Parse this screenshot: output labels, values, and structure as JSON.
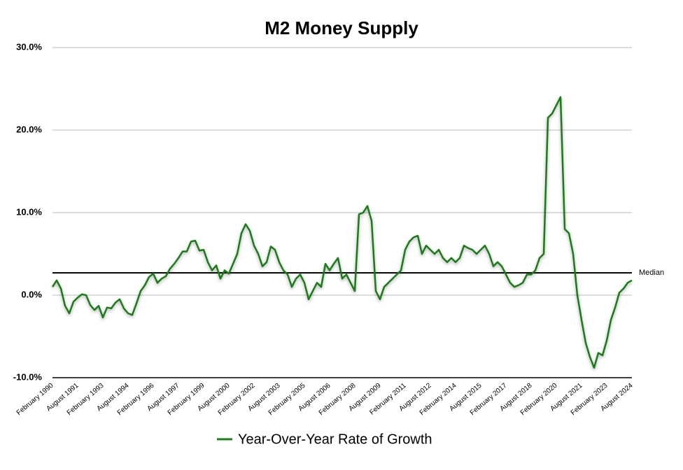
{
  "chart_data": {
    "type": "line",
    "title": "M2 Money Supply",
    "categories": [
      "February 1990",
      null,
      null,
      null,
      null,
      null,
      "August 1991",
      null,
      null,
      null,
      null,
      null,
      "February 1993",
      null,
      null,
      null,
      null,
      null,
      "August 1994",
      null,
      null,
      null,
      null,
      null,
      "February 1996",
      null,
      null,
      null,
      null,
      null,
      "August 1997",
      null,
      null,
      null,
      null,
      null,
      "February 1999",
      null,
      null,
      null,
      null,
      null,
      "August 2000",
      null,
      null,
      null,
      null,
      null,
      "February 2002",
      null,
      null,
      null,
      null,
      null,
      "August 2003",
      null,
      null,
      null,
      null,
      null,
      "February 2005",
      null,
      null,
      null,
      null,
      null,
      "August 2006",
      null,
      null,
      null,
      null,
      null,
      "February 2008",
      null,
      null,
      null,
      null,
      null,
      "August 2009",
      null,
      null,
      null,
      null,
      null,
      "February 2011",
      null,
      null,
      null,
      null,
      null,
      "August 2012",
      null,
      null,
      null,
      null,
      null,
      "February 2014",
      null,
      null,
      null,
      null,
      null,
      "August 2015",
      null,
      null,
      null,
      null,
      null,
      "February 2017",
      null,
      null,
      null,
      null,
      null,
      "August 2018",
      null,
      null,
      null,
      null,
      null,
      "February 2020",
      null,
      null,
      null,
      null,
      null,
      "August 2021",
      null,
      null,
      null,
      null,
      null,
      "February 2023",
      null,
      null,
      null,
      null,
      null,
      "August 2024"
    ],
    "series": [
      {
        "name": "Year-Over-Year Rate of Growth",
        "color": "#1f7a1a",
        "values": [
          1.0,
          1.8,
          0.8,
          -1.3,
          -2.2,
          -0.8,
          -0.3,
          0.1,
          0.0,
          -1.2,
          -1.8,
          -1.3,
          -2.7,
          -1.5,
          -1.6,
          -0.9,
          -0.5,
          -1.6,
          -2.2,
          -2.4,
          -1.0,
          0.5,
          1.2,
          2.2,
          2.6,
          1.5,
          2.0,
          2.3,
          3.2,
          3.8,
          4.5,
          5.3,
          5.3,
          6.5,
          6.6,
          5.4,
          5.5,
          4.0,
          3.0,
          3.6,
          2.0,
          3.0,
          2.6,
          3.8,
          5.0,
          7.5,
          8.6,
          7.8,
          6.0,
          5.0,
          3.5,
          4.0,
          5.9,
          5.5,
          4.0,
          3.0,
          2.5,
          1.0,
          2.0,
          2.5,
          1.5,
          -0.5,
          0.5,
          1.5,
          1.0,
          3.8,
          3.0,
          3.8,
          4.5,
          2.0,
          2.5,
          1.5,
          0.5,
          9.8,
          10.0,
          10.8,
          9.0,
          0.5,
          -0.5,
          1.0,
          1.5,
          2.0,
          2.5,
          3.0,
          5.5,
          6.5,
          7.0,
          7.2,
          5.0,
          6.0,
          5.5,
          5.0,
          5.5,
          4.5,
          4.0,
          4.5,
          4.0,
          4.5,
          6.0,
          5.7,
          5.5,
          5.0,
          5.5,
          6.0,
          5.0,
          3.5,
          4.0,
          3.5,
          2.5,
          1.5,
          1.0,
          1.2,
          1.5,
          2.5,
          2.5,
          3.0,
          4.5,
          5.0,
          21.5,
          22.0,
          23.0,
          24.0,
          8.0,
          7.5,
          5.0,
          0.0,
          -3.0,
          -5.8,
          -7.5,
          -8.8,
          -7.0,
          -7.3,
          -5.5,
          -3.0,
          -1.5,
          0.3,
          0.8,
          1.5,
          1.8
        ]
      }
    ],
    "ylim": [
      -10,
      30
    ],
    "yticks": [
      {
        "value": -10,
        "label": "-10.0%"
      },
      {
        "value": 0,
        "label": "0.0%"
      },
      {
        "value": 10,
        "label": "10.0%"
      },
      {
        "value": 20,
        "label": "20.0%"
      },
      {
        "value": 30,
        "label": "30.0%"
      }
    ],
    "grid": true,
    "median": {
      "value": 2.7,
      "label": "Median"
    },
    "legend": "bottom"
  }
}
